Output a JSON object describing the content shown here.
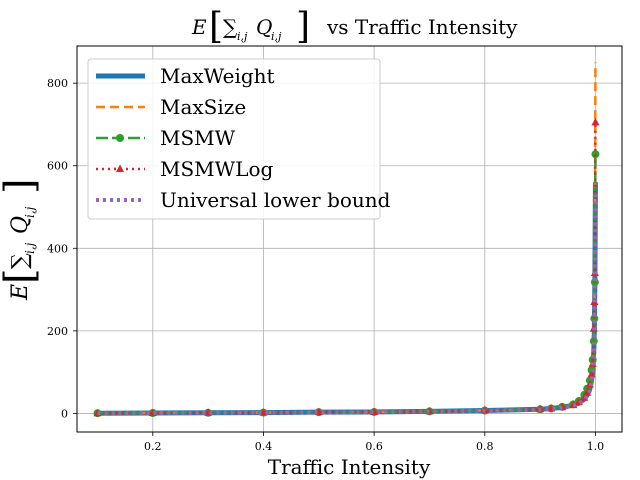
{
  "chart_data": {
    "type": "line",
    "title_main": "E",
    "title_sum": "∑",
    "title_sub": "i,j",
    "title_q": "Q",
    "title_qsub": "i,j",
    "title_suffix": "vs Traffic Intensity",
    "xlabel": "Traffic Intensity",
    "ylabel_main": "E",
    "ylabel_sum": "∑",
    "ylabel_sub": "i,j",
    "ylabel_q": "Q",
    "ylabel_qsub": "i,j",
    "xlim": [
      0.063,
      1.048
    ],
    "ylim": [
      -45,
      890
    ],
    "xticks": [
      0.2,
      0.4,
      0.6,
      0.8,
      1.0
    ],
    "xtick_labels": [
      "0.2",
      "0.4",
      "0.6",
      "0.8",
      "1.0"
    ],
    "yticks": [
      0,
      200,
      400,
      600,
      800
    ],
    "ytick_labels": [
      "0",
      "200",
      "400",
      "600",
      "800"
    ],
    "grid": true,
    "legend_position": "top-left",
    "series": [
      {
        "name": "MaxWeight",
        "color": "#1f77b4",
        "style": "solid-thick",
        "marker": "none",
        "x": [
          0.1,
          0.2,
          0.3,
          0.4,
          0.5,
          0.6,
          0.7,
          0.8,
          0.9,
          0.92,
          0.94,
          0.96,
          0.97,
          0.98,
          0.985,
          0.99,
          0.993,
          0.995,
          0.997,
          0.998,
          0.999,
          1.0
        ],
        "y": [
          0.5,
          1,
          1.5,
          2,
          3,
          3.5,
          5,
          7,
          10,
          12,
          15,
          20,
          25,
          35,
          45,
          60,
          80,
          100,
          150,
          200,
          320,
          560
        ]
      },
      {
        "name": "MaxSize",
        "color": "#ff7f0e",
        "style": "dashed",
        "marker": "none",
        "x": [
          0.1,
          0.2,
          0.3,
          0.4,
          0.5,
          0.6,
          0.7,
          0.8,
          0.9,
          0.92,
          0.94,
          0.96,
          0.97,
          0.98,
          0.985,
          0.99,
          0.993,
          0.995,
          0.997,
          0.998,
          0.999,
          1.0
        ],
        "y": [
          0.5,
          1,
          1.5,
          2,
          3,
          3.5,
          5,
          7,
          10,
          12,
          15,
          20,
          26,
          37,
          47,
          63,
          85,
          110,
          170,
          240,
          380,
          850
        ]
      },
      {
        "name": "MSMW",
        "color": "#2ca02c",
        "style": "dash-long",
        "marker": "circle",
        "x": [
          0.1,
          0.2,
          0.3,
          0.4,
          0.5,
          0.6,
          0.7,
          0.8,
          0.9,
          0.92,
          0.94,
          0.96,
          0.97,
          0.98,
          0.985,
          0.99,
          0.993,
          0.995,
          0.997,
          0.998,
          0.999,
          1.0
        ],
        "y": [
          0.5,
          1,
          1.5,
          2,
          3,
          3.5,
          5,
          7,
          10,
          12,
          16,
          22,
          30,
          45,
          60,
          80,
          105,
          130,
          175,
          230,
          318,
          628
        ]
      },
      {
        "name": "MSMWLog",
        "color": "#d62728",
        "style": "dotted",
        "marker": "triangle",
        "x": [
          0.1,
          0.2,
          0.3,
          0.4,
          0.5,
          0.6,
          0.7,
          0.8,
          0.9,
          0.92,
          0.94,
          0.96,
          0.97,
          0.98,
          0.985,
          0.99,
          0.993,
          0.995,
          0.997,
          0.998,
          0.999,
          1.0
        ],
        "y": [
          0.5,
          1,
          1.5,
          2,
          3,
          3.5,
          5,
          7,
          10,
          12,
          15,
          20,
          27,
          38,
          50,
          70,
          95,
          120,
          205,
          270,
          340,
          705
        ]
      },
      {
        "name": "Universal lower bound",
        "color": "#9467bd",
        "style": "dotted-thick",
        "marker": "none",
        "x": [
          0.1,
          0.2,
          0.3,
          0.4,
          0.5,
          0.6,
          0.7,
          0.8,
          0.9,
          0.92,
          0.94,
          0.96,
          0.97,
          0.98,
          0.985,
          0.99,
          0.993,
          0.995,
          0.997,
          0.998,
          0.999,
          1.0
        ],
        "y": [
          0.4,
          0.9,
          1.3,
          1.8,
          2.5,
          3,
          4.5,
          6.5,
          9,
          11,
          14,
          19,
          24,
          33,
          42,
          55,
          75,
          95,
          140,
          190,
          300,
          540
        ]
      }
    ]
  }
}
